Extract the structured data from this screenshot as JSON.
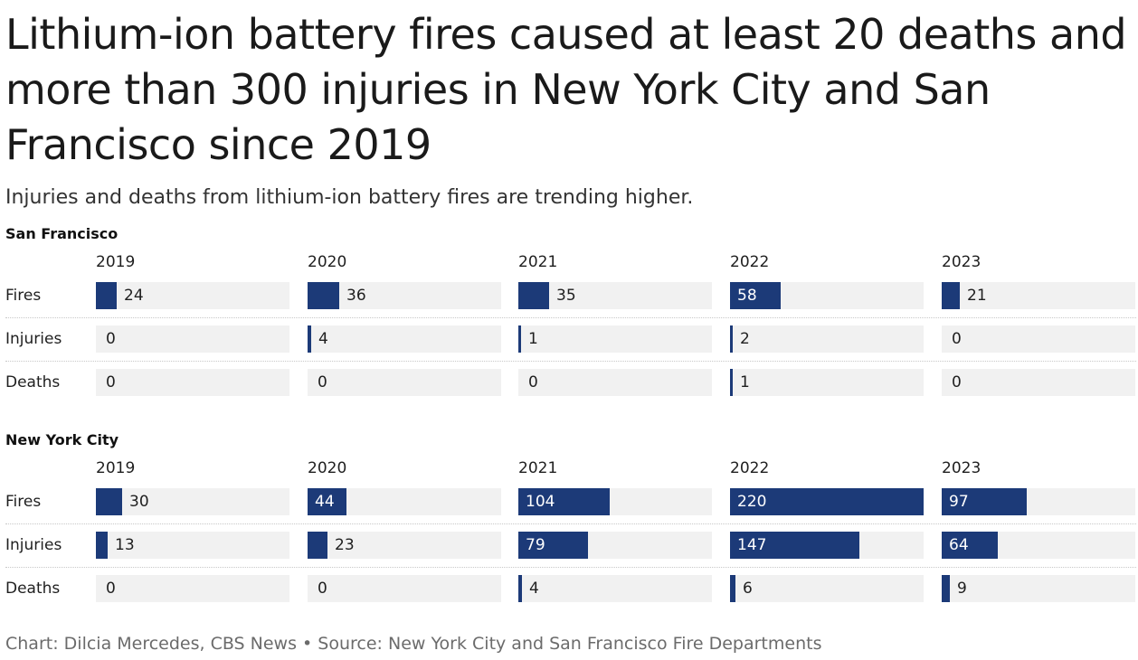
{
  "title": "Lithium-ion battery fires caused at least 20 deaths and more than 300 injuries in New York City and San Francisco since 2019",
  "subtitle": "Injuries and deaths from lithium-ion battery fires are trending higher.",
  "footer": "Chart: Dilcia Mercedes, CBS News • Source: New York City and San Francisco Fire Departments",
  "colors": {
    "bar": "#1c3a78",
    "track": "#f1f1f1"
  },
  "chart_data": [
    {
      "type": "bar",
      "title": "San Francisco",
      "categories": [
        "2019",
        "2020",
        "2021",
        "2022",
        "2023"
      ],
      "series": [
        {
          "name": "Fires",
          "values": [
            24,
            36,
            35,
            58,
            21
          ]
        },
        {
          "name": "Injuries",
          "values": [
            0,
            4,
            1,
            2,
            0
          ]
        },
        {
          "name": "Deaths",
          "values": [
            0,
            0,
            0,
            1,
            0
          ]
        }
      ],
      "xlim": [
        0,
        220
      ]
    },
    {
      "type": "bar",
      "title": "New York City",
      "categories": [
        "2019",
        "2020",
        "2021",
        "2022",
        "2023"
      ],
      "series": [
        {
          "name": "Fires",
          "values": [
            30,
            44,
            104,
            220,
            97
          ]
        },
        {
          "name": "Injuries",
          "values": [
            13,
            23,
            79,
            147,
            64
          ]
        },
        {
          "name": "Deaths",
          "values": [
            0,
            0,
            4,
            6,
            9
          ]
        }
      ],
      "xlim": [
        0,
        220
      ]
    }
  ]
}
